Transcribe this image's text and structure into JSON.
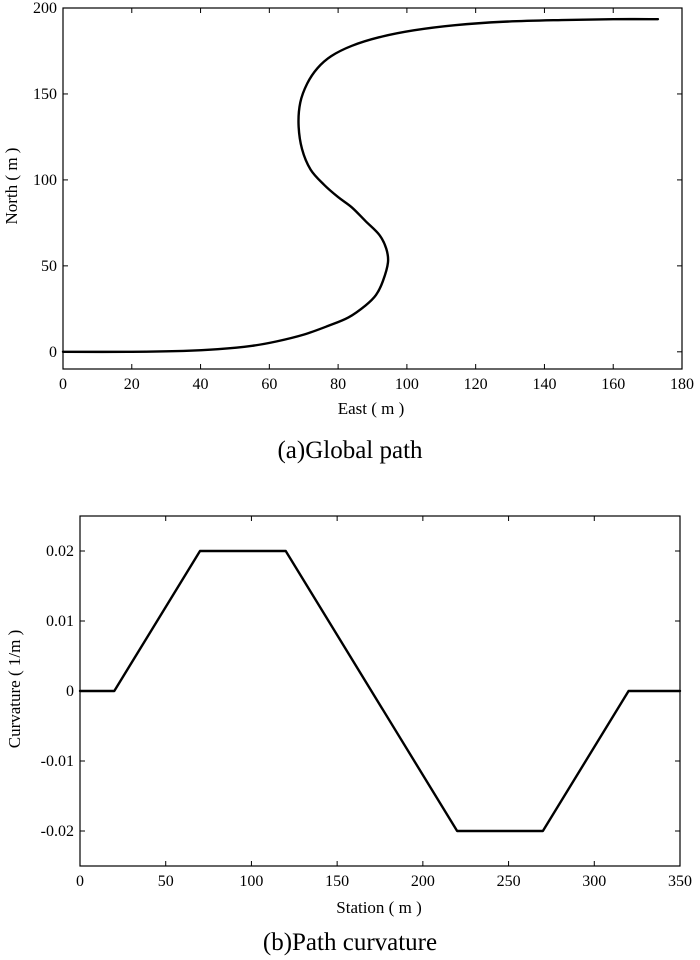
{
  "chart_data": [
    {
      "type": "line",
      "caption": "(a)Global path",
      "xlabel": "East ( m )",
      "ylabel": "North ( m )",
      "xlim": [
        0,
        180
      ],
      "ylim": [
        -10,
        200
      ],
      "xticks": [
        0,
        20,
        40,
        60,
        80,
        100,
        120,
        140,
        160,
        180
      ],
      "yticks": [
        0,
        50,
        100,
        150,
        200
      ],
      "xtick_labels": [
        "0",
        "20",
        "40",
        "60",
        "80",
        "100",
        "120",
        "140",
        "160",
        "180"
      ],
      "ytick_labels": [
        "0",
        "50",
        "100",
        "150",
        "200"
      ],
      "grid": false,
      "series": [
        {
          "x": [
            0,
            20,
            35,
            45,
            55,
            62,
            70,
            77,
            83,
            88,
            91,
            93,
            94.5,
            94,
            92,
            88,
            84,
            80,
            76,
            72,
            69.5,
            68.5,
            69,
            71,
            74,
            78,
            84,
            92,
            102,
            114,
            128,
            145,
            160,
            173
          ],
          "y": [
            0,
            0,
            0.5,
            1.5,
            3.5,
            6,
            10,
            15,
            20,
            27,
            33,
            41,
            52,
            60,
            68,
            76,
            84,
            90,
            97,
            106,
            118,
            132,
            145,
            156,
            165,
            172,
            178,
            183,
            187,
            190,
            192,
            193,
            193.5,
            193.5
          ],
          "color": "#000000"
        }
      ]
    },
    {
      "type": "line",
      "caption": "(b)Path curvature",
      "xlabel": "Station ( m )",
      "ylabel": "Curvature ( 1/m )",
      "xlim": [
        0,
        350
      ],
      "ylim": [
        -0.025,
        0.025
      ],
      "xticks": [
        0,
        50,
        100,
        150,
        200,
        250,
        300,
        350
      ],
      "yticks": [
        -0.02,
        -0.01,
        0,
        0.01,
        0.02
      ],
      "xtick_labels": [
        "0",
        "50",
        "100",
        "150",
        "200",
        "250",
        "300",
        "350"
      ],
      "ytick_labels": [
        "-0.02",
        "-0.01",
        "0",
        "0.01",
        "0.02"
      ],
      "grid": false,
      "series": [
        {
          "x": [
            0,
            20,
            70,
            120,
            220,
            270,
            320,
            350
          ],
          "y": [
            0,
            0,
            0.02,
            0.02,
            -0.02,
            -0.02,
            0,
            0
          ],
          "color": "#000000"
        }
      ]
    }
  ]
}
